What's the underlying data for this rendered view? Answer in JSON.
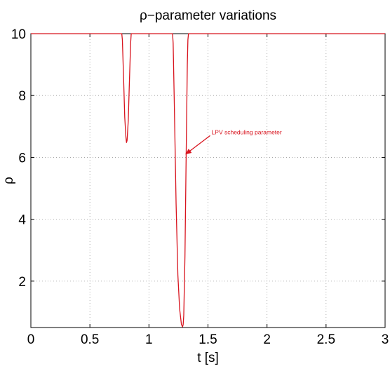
{
  "chart_data": {
    "type": "line",
    "title": "ρ−parameter variations",
    "xlabel": "t [s]",
    "ylabel": "ρ",
    "xlim": [
      0,
      3
    ],
    "ylim": [
      0.5,
      10
    ],
    "grid": true,
    "xticks": [
      0,
      0.5,
      1,
      1.5,
      2,
      2.5,
      3
    ],
    "xtick_labels": [
      "0",
      "0.5",
      "1",
      "1.5",
      "2",
      "2.5",
      "3"
    ],
    "yticks": [
      2,
      4,
      6,
      8,
      10
    ],
    "ytick_labels": [
      "2",
      "4",
      "6",
      "8",
      "10"
    ],
    "colors": {
      "line": "#d8141e",
      "annotation": "#d8141e",
      "axes": "#000000",
      "grid": "#9a9a9a"
    },
    "series": [
      {
        "x": [
          0,
          0.77,
          0.775,
          0.785,
          0.795,
          0.805,
          0.81,
          0.815,
          0.825,
          0.835,
          0.845,
          0.85,
          0.855,
          1.2,
          1.205,
          1.215,
          1.23,
          1.245,
          1.26,
          1.275,
          1.285,
          1.29,
          1.295,
          1.305,
          1.315,
          1.325,
          1.33,
          1.335,
          3
        ],
        "y": [
          10,
          10,
          9.8,
          8.6,
          7.3,
          6.65,
          6.48,
          6.55,
          7.2,
          8.5,
          9.7,
          10,
          10,
          10,
          9.7,
          7.7,
          4.5,
          2.2,
          1.1,
          0.6,
          0.52,
          0.6,
          0.9,
          2.8,
          6.0,
          9.0,
          9.8,
          10,
          10
        ]
      }
    ],
    "annotations": [
      {
        "text": "LPV scheduling parameter",
        "x": 1.53,
        "y": 6.75,
        "arrow_to": [
          1.31,
          6.1
        ]
      }
    ]
  }
}
